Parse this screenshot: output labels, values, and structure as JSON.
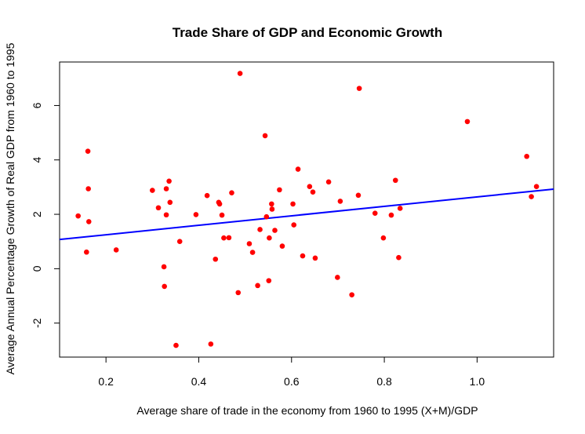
{
  "chart_data": {
    "type": "scatter",
    "title": "Trade Share of GDP and Economic Growth",
    "xlabel": "Average share of trade in the economy from 1960 to 1995 (X+M)/GDP",
    "ylabel": "Average Annual Percentage Growth of Real GDP from 1960 to 1995",
    "xlim": [
      0.1,
      1.165
    ],
    "ylim": [
      -3.25,
      7.6
    ],
    "xticks": [
      0.2,
      0.4,
      0.6,
      0.8,
      1.0
    ],
    "xtick_labels": [
      "0.2",
      "0.4",
      "0.6",
      "0.8",
      "1.0"
    ],
    "yticks": [
      -2,
      0,
      2,
      4,
      6
    ],
    "ytick_labels": [
      "-2",
      "0",
      "2",
      "4",
      "6"
    ],
    "grid": false,
    "point_color": "#ff0000",
    "line_color": "#0000ff",
    "regression_line": {
      "intercept": 0.9,
      "slope": 1.74
    },
    "points": [
      {
        "x": 0.14,
        "y": 1.94
      },
      {
        "x": 0.158,
        "y": 0.61
      },
      {
        "x": 0.161,
        "y": 4.32
      },
      {
        "x": 0.162,
        "y": 2.94
      },
      {
        "x": 0.163,
        "y": 1.73
      },
      {
        "x": 0.222,
        "y": 0.69
      },
      {
        "x": 0.3,
        "y": 2.88
      },
      {
        "x": 0.313,
        "y": 2.24
      },
      {
        "x": 0.325,
        "y": 0.07
      },
      {
        "x": 0.326,
        "y": -0.65
      },
      {
        "x": 0.33,
        "y": 2.94
      },
      {
        "x": 0.33,
        "y": 1.98
      },
      {
        "x": 0.336,
        "y": 3.22
      },
      {
        "x": 0.338,
        "y": 2.44
      },
      {
        "x": 0.351,
        "y": -2.82
      },
      {
        "x": 0.359,
        "y": 1.0
      },
      {
        "x": 0.394,
        "y": 1.99
      },
      {
        "x": 0.418,
        "y": 2.69
      },
      {
        "x": 0.426,
        "y": -2.77
      },
      {
        "x": 0.436,
        "y": 0.35
      },
      {
        "x": 0.443,
        "y": 2.44
      },
      {
        "x": 0.445,
        "y": 2.38
      },
      {
        "x": 0.45,
        "y": 1.97
      },
      {
        "x": 0.454,
        "y": 1.13
      },
      {
        "x": 0.465,
        "y": 1.14
      },
      {
        "x": 0.471,
        "y": 2.79
      },
      {
        "x": 0.485,
        "y": -0.88
      },
      {
        "x": 0.489,
        "y": 7.18
      },
      {
        "x": 0.509,
        "y": 0.92
      },
      {
        "x": 0.516,
        "y": 0.6
      },
      {
        "x": 0.527,
        "y": -0.62
      },
      {
        "x": 0.532,
        "y": 1.44
      },
      {
        "x": 0.543,
        "y": 4.89
      },
      {
        "x": 0.546,
        "y": 1.91
      },
      {
        "x": 0.551,
        "y": -0.44
      },
      {
        "x": 0.552,
        "y": 1.13
      },
      {
        "x": 0.557,
        "y": 2.38
      },
      {
        "x": 0.558,
        "y": 2.19
      },
      {
        "x": 0.564,
        "y": 1.41
      },
      {
        "x": 0.574,
        "y": 2.9
      },
      {
        "x": 0.58,
        "y": 0.83
      },
      {
        "x": 0.603,
        "y": 2.38
      },
      {
        "x": 0.605,
        "y": 1.61
      },
      {
        "x": 0.614,
        "y": 3.66
      },
      {
        "x": 0.624,
        "y": 0.47
      },
      {
        "x": 0.639,
        "y": 3.02
      },
      {
        "x": 0.646,
        "y": 2.82
      },
      {
        "x": 0.651,
        "y": 0.39
      },
      {
        "x": 0.68,
        "y": 3.19
      },
      {
        "x": 0.699,
        "y": -0.32
      },
      {
        "x": 0.705,
        "y": 2.48
      },
      {
        "x": 0.73,
        "y": -0.96
      },
      {
        "x": 0.744,
        "y": 2.7
      },
      {
        "x": 0.746,
        "y": 6.63
      },
      {
        "x": 0.78,
        "y": 2.04
      },
      {
        "x": 0.798,
        "y": 1.13
      },
      {
        "x": 0.815,
        "y": 1.97
      },
      {
        "x": 0.824,
        "y": 3.25
      },
      {
        "x": 0.831,
        "y": 0.41
      },
      {
        "x": 0.834,
        "y": 2.22
      },
      {
        "x": 0.979,
        "y": 5.41
      },
      {
        "x": 1.107,
        "y": 4.13
      },
      {
        "x": 1.117,
        "y": 2.65
      },
      {
        "x": 1.128,
        "y": 3.02
      }
    ]
  }
}
